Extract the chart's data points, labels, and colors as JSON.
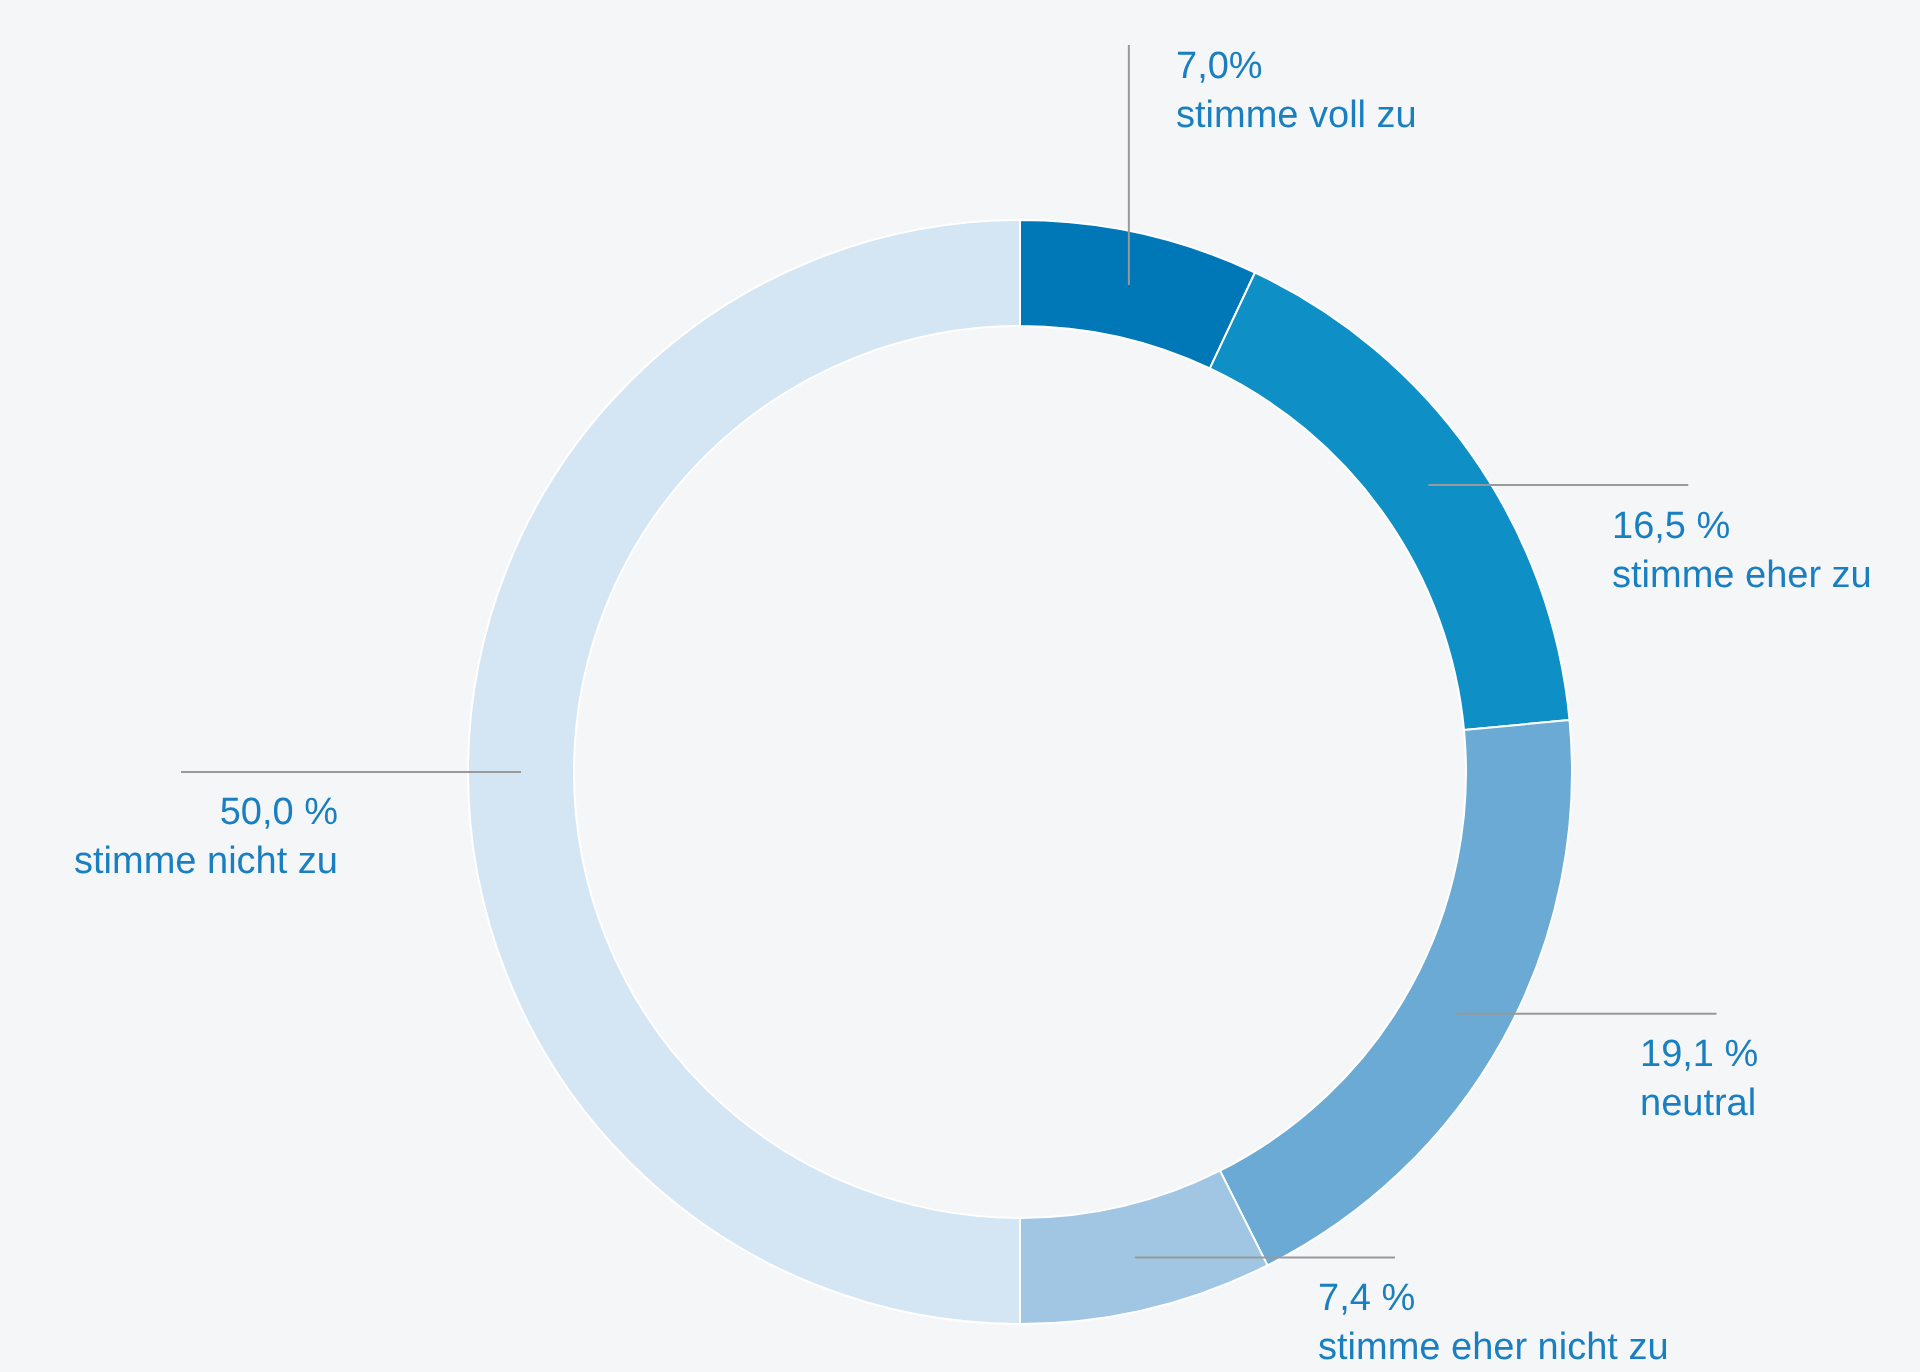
{
  "chart_data": {
    "type": "donut",
    "categories": [
      "stimme voll zu",
      "stimme eher zu",
      "neutral",
      "stimme eher nicht zu",
      "stimme nicht zu"
    ],
    "values": [
      7.0,
      16.5,
      19.1,
      7.4,
      50.0
    ],
    "value_labels": [
      "7,0%",
      "16,5 %",
      "19,1 %",
      "7,4 %",
      "50,0 %"
    ],
    "colors": [
      "#0077b6",
      "#0e8fc5",
      "#6aaad4",
      "#a1c6e3",
      "#d4e5f3"
    ],
    "legend": false
  }
}
